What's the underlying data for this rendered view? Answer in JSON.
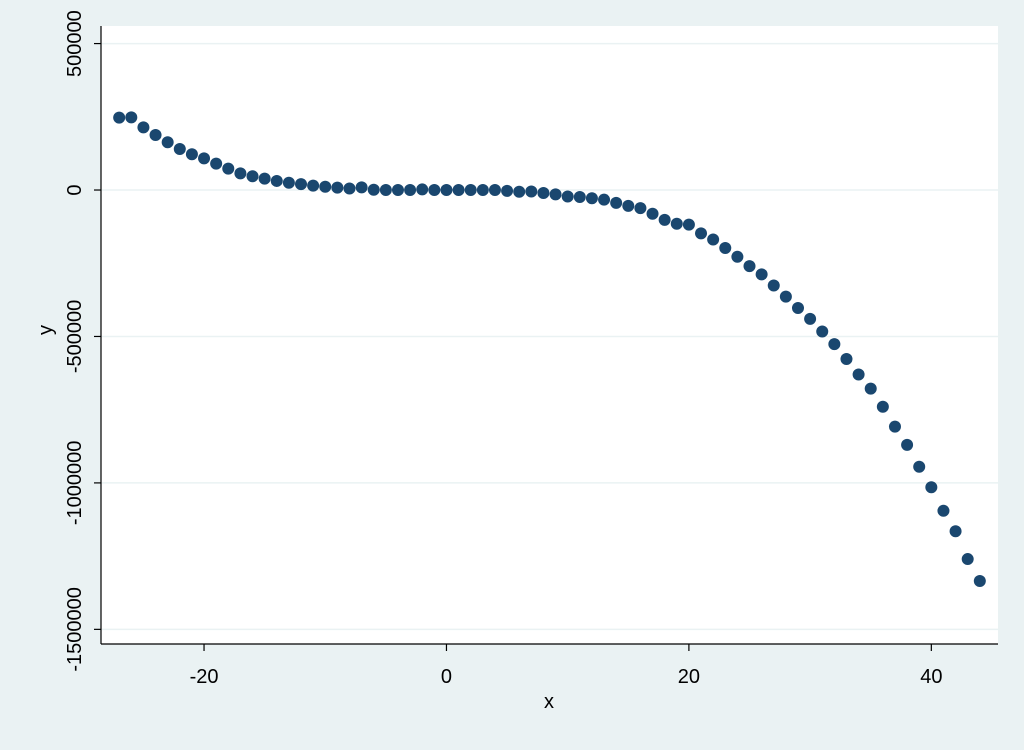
{
  "chart_data": {
    "type": "scatter",
    "title": "",
    "xlabel": "x",
    "ylabel": "y",
    "xlim": [
      -28.5,
      45.5
    ],
    "ylim": [
      -1550000,
      560000
    ],
    "x_ticks": [
      -20,
      0,
      20,
      40
    ],
    "x_tick_labels": [
      "-20",
      "0",
      "20",
      "40"
    ],
    "y_ticks": [
      -1500000,
      -1000000,
      -500000,
      0,
      500000
    ],
    "y_tick_labels": [
      "-1500000",
      "-1000000",
      "-500000",
      "0",
      "500000"
    ],
    "grid": "horizontal",
    "legend": "none",
    "colors": {
      "marker": "#1a476f",
      "background": "#eaf2f3",
      "plot_area": "#ffffff",
      "grid": "#eaf2f3"
    },
    "points": [
      [
        -27,
        247000
      ],
      [
        -26,
        248000
      ],
      [
        -25,
        214000
      ],
      [
        -24,
        188000
      ],
      [
        -23,
        163000
      ],
      [
        -22,
        140000
      ],
      [
        -21,
        122000
      ],
      [
        -20,
        108000
      ],
      [
        -19,
        90000
      ],
      [
        -18,
        73000
      ],
      [
        -17,
        57000
      ],
      [
        -16,
        47000
      ],
      [
        -15,
        39000
      ],
      [
        -14,
        31000
      ],
      [
        -13,
        25000
      ],
      [
        -12,
        20000
      ],
      [
        -11,
        15000
      ],
      [
        -10,
        11000
      ],
      [
        -9,
        8000
      ],
      [
        -8,
        5000
      ],
      [
        -7,
        9000
      ],
      [
        -6,
        1000
      ],
      [
        -5,
        0
      ],
      [
        -4,
        0
      ],
      [
        -3,
        0
      ],
      [
        -2,
        2000
      ],
      [
        -1,
        0
      ],
      [
        0,
        0
      ],
      [
        1,
        0
      ],
      [
        2,
        0
      ],
      [
        3,
        0
      ],
      [
        4,
        0
      ],
      [
        5,
        -3000
      ],
      [
        6,
        -6000
      ],
      [
        7,
        -5000
      ],
      [
        8,
        -10000
      ],
      [
        9,
        -15000
      ],
      [
        10,
        -22000
      ],
      [
        11,
        -24000
      ],
      [
        12,
        -28000
      ],
      [
        13,
        -33000
      ],
      [
        14,
        -44000
      ],
      [
        15,
        -54000
      ],
      [
        16,
        -62000
      ],
      [
        17,
        -81000
      ],
      [
        18,
        -102000
      ],
      [
        19,
        -115000
      ],
      [
        20,
        -118000
      ],
      [
        21,
        -148000
      ],
      [
        22,
        -169000
      ],
      [
        23,
        -198000
      ],
      [
        24,
        -228000
      ],
      [
        25,
        -260000
      ],
      [
        26,
        -288000
      ],
      [
        27,
        -326000
      ],
      [
        28,
        -364000
      ],
      [
        29,
        -403000
      ],
      [
        30,
        -440000
      ],
      [
        31,
        -483000
      ],
      [
        32,
        -526000
      ],
      [
        33,
        -577000
      ],
      [
        34,
        -630000
      ],
      [
        35,
        -678000
      ],
      [
        36,
        -740000
      ],
      [
        37,
        -808000
      ],
      [
        38,
        -870000
      ],
      [
        39,
        -945000
      ],
      [
        40,
        -1015000
      ],
      [
        41,
        -1095000
      ],
      [
        42,
        -1165000
      ],
      [
        43,
        -1260000
      ],
      [
        44,
        -1335000
      ]
    ]
  }
}
